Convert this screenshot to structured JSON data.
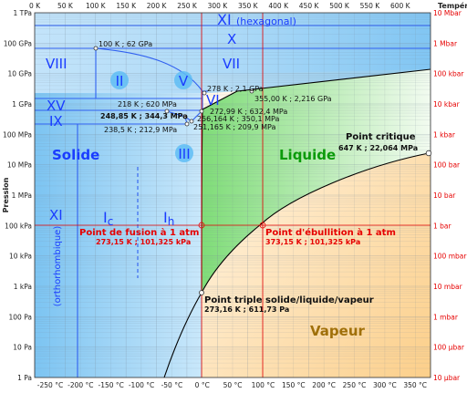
{
  "axes": {
    "top_ticks": [
      "0 K",
      "50 K",
      "100 K",
      "150 K",
      "200 K",
      "250 K",
      "300 K",
      "350 K",
      "400 K",
      "450 K",
      "500 K",
      "550 K",
      "600 K"
    ],
    "top_label": "Température",
    "bottom_ticks": [
      "-250 °C",
      "-200 °C",
      "-150 °C",
      "-100 °C",
      "-50 °C",
      "0 °C",
      "50 °C",
      "100 °C",
      "150 °C",
      "200 °C",
      "250 °C",
      "300 °C",
      "350 °C"
    ],
    "left_ticks": [
      "1 TPa",
      "100 GPa",
      "10 GPa",
      "1 GPa",
      "100 MPa",
      "10 MPa",
      "1 MPa",
      "100 kPa",
      "10 kPa",
      "1 kPa",
      "100 Pa",
      "10 Pa",
      "1 Pa"
    ],
    "left_label": "Pression",
    "right_ticks": [
      "10 Mbar",
      "1 Mbar",
      "100 kbar",
      "10 kbar",
      "1 kbar",
      "100 bar",
      "10 bar",
      "1 bar",
      "100 mbar",
      "10 mbar",
      "1 mbar",
      "100 µbar",
      "10 µbar"
    ]
  },
  "phases": {
    "XI_hex": "XI",
    "XI_hex_note": "(hexagonal)",
    "X": "X",
    "VIII": "VIII",
    "VII": "VII",
    "II": "II",
    "V": "V",
    "VI": "VI",
    "XV": "XV",
    "IX": "IX",
    "III": "III",
    "solide": "Solide",
    "liquide": "Liquide",
    "vapeur": "Vapeur",
    "XI_ortho": "XI",
    "XI_ortho_note": "(orthorhombique)",
    "Ic": "I",
    "Ic_sub": "c",
    "Ih": "I",
    "Ih_sub": "h"
  },
  "points": {
    "p100k": "100 K ; 62 GPa",
    "p278k": "278 K ; 2,1 GPa",
    "p355k": "355,00 K ; 2,216 GPa",
    "p218k": "218 K ; 620 MPa",
    "p248k": "248,85 K ; 344,3 MPa",
    "p272k": "272,99 K ; 632,4 MPa",
    "p256k": "256,164 K ; 350,1 MPa",
    "p238k": "238,5 K ; 212,9 MPa",
    "p251k": "251,165 K ; 209,9 MPa"
  },
  "critique": {
    "title": "Point critique",
    "value": "647 K ; 22,064 MPa"
  },
  "fusion": {
    "title": "Point de fusion à 1 atm",
    "value": "273,15 K ; 101,325 kPa"
  },
  "ebullition": {
    "title": "Point d'ébullition à 1 atm",
    "value": "373,15 K ; 101,325 kPa"
  },
  "triple": {
    "title": "Point triple solide/liquide/vapeur",
    "value": "273,16 K ; 611,73 Pa"
  },
  "colors": {
    "solid": "#9fd3f7",
    "liquid": "#8de08a",
    "vapor": "#fdd9a0",
    "red": "#e60000",
    "blue_text": "#1a3cff",
    "green_text": "#0a9a0a",
    "vapor_text": "#a0700a"
  }
}
